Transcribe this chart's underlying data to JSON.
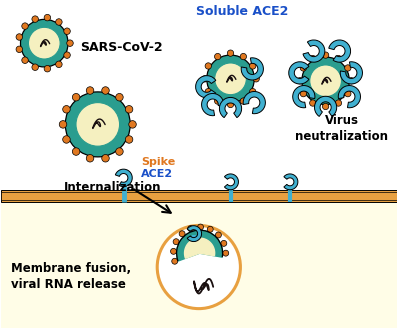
{
  "background_color": "#ffffff",
  "cell_bg_color": "#fffde7",
  "cell_membrane_color_top": "#e8a040",
  "cell_membrane_color_bottom": "#e8a040",
  "virus_outer_color": "#2a9d8f",
  "virus_inner_color": "#f5f0c0",
  "spike_color": "#e07820",
  "ace2_color": "#40b0d0",
  "rna_color": "#1a1010",
  "text_color_black": "#000000",
  "text_color_blue": "#1a50c8",
  "text_color_orange": "#e07820",
  "labels": {
    "sars": "SARS-CoV-2",
    "soluble_ace2": "Soluble ACE2",
    "virus_neutral": "Virus\nneutralization",
    "spike": "Spike",
    "ace2": "ACE2",
    "internalization": "Internalization",
    "membrane_fusion": "Membrane fusion,\nviral RNA release"
  },
  "fig_width": 4.0,
  "fig_height": 3.3,
  "dpi": 100
}
